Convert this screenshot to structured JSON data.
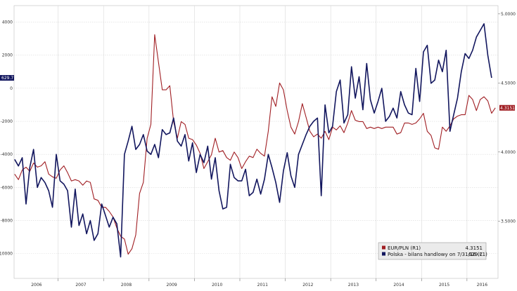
{
  "chart_data": {
    "type": "line",
    "title": "",
    "xlabel": "",
    "ylabel": "",
    "x_ticks": [
      "2006",
      "2007",
      "2008",
      "2009",
      "2010",
      "2011",
      "2012",
      "2013",
      "2014",
      "2015",
      "2016"
    ],
    "left_axis": {
      "ticks": [
        4000,
        2000,
        0,
        -2000,
        -4000,
        -6000,
        -8000,
        -10000
      ],
      "ylim": [
        -11500,
        5000
      ]
    },
    "right_axis": {
      "ticks": [
        "5.0000",
        "4.5000",
        "4.0000",
        "3.5000"
      ],
      "ylim": [
        3.085,
        5.06
      ]
    },
    "grid": true,
    "legend_position": "bottom-right",
    "series": [
      {
        "name": "EUR/PLN (R1)",
        "last_value": "4.3151",
        "color": "#a01e23",
        "axis": "right",
        "points": [
          [
            "2006-01",
            3.84
          ],
          [
            "2006-02",
            3.8
          ],
          [
            "2006-03",
            3.87
          ],
          [
            "2006-04",
            3.89
          ],
          [
            "2006-05",
            3.86
          ],
          [
            "2006-06",
            3.92
          ],
          [
            "2006-07",
            3.89
          ],
          [
            "2006-08",
            3.9
          ],
          [
            "2006-09",
            3.93
          ],
          [
            "2006-10",
            3.84
          ],
          [
            "2006-11",
            3.82
          ],
          [
            "2006-12",
            3.81
          ],
          [
            "2007-01",
            3.87
          ],
          [
            "2007-02",
            3.9
          ],
          [
            "2007-03",
            3.85
          ],
          [
            "2007-04",
            3.79
          ],
          [
            "2007-05",
            3.8
          ],
          [
            "2007-06",
            3.79
          ],
          [
            "2007-07",
            3.76
          ],
          [
            "2007-08",
            3.79
          ],
          [
            "2007-09",
            3.78
          ],
          [
            "2007-10",
            3.66
          ],
          [
            "2007-11",
            3.65
          ],
          [
            "2007-12",
            3.6
          ],
          [
            "2008-01",
            3.6
          ],
          [
            "2008-02",
            3.57
          ],
          [
            "2008-03",
            3.53
          ],
          [
            "2008-04",
            3.45
          ],
          [
            "2008-05",
            3.39
          ],
          [
            "2008-06",
            3.37
          ],
          [
            "2008-07",
            3.26
          ],
          [
            "2008-08",
            3.3
          ],
          [
            "2008-09",
            3.4
          ],
          [
            "2008-10",
            3.7
          ],
          [
            "2008-11",
            3.78
          ],
          [
            "2008-12",
            4.1
          ],
          [
            "2009-01",
            4.2
          ],
          [
            "2009-02",
            4.85
          ],
          [
            "2009-03",
            4.65
          ],
          [
            "2009-04",
            4.45
          ],
          [
            "2009-05",
            4.45
          ],
          [
            "2009-06",
            4.48
          ],
          [
            "2009-07",
            4.22
          ],
          [
            "2009-08",
            4.1
          ],
          [
            "2009-09",
            4.22
          ],
          [
            "2009-10",
            4.2
          ],
          [
            "2009-11",
            4.1
          ],
          [
            "2009-12",
            4.09
          ],
          [
            "2010-01",
            4.05
          ],
          [
            "2010-02",
            3.99
          ],
          [
            "2010-03",
            3.88
          ],
          [
            "2010-04",
            3.93
          ],
          [
            "2010-05",
            3.98
          ],
          [
            "2010-06",
            4.1
          ],
          [
            "2010-07",
            4.0
          ],
          [
            "2010-08",
            4.01
          ],
          [
            "2010-09",
            3.96
          ],
          [
            "2010-10",
            3.94
          ],
          [
            "2010-11",
            4.0
          ],
          [
            "2010-12",
            3.96
          ],
          [
            "2011-01",
            3.88
          ],
          [
            "2011-02",
            3.93
          ],
          [
            "2011-03",
            3.97
          ],
          [
            "2011-04",
            3.96
          ],
          [
            "2011-05",
            4.02
          ],
          [
            "2011-06",
            3.99
          ],
          [
            "2011-07",
            3.97
          ],
          [
            "2011-08",
            4.15
          ],
          [
            "2011-09",
            4.4
          ],
          [
            "2011-10",
            4.33
          ],
          [
            "2011-11",
            4.5
          ],
          [
            "2011-12",
            4.45
          ],
          [
            "2012-01",
            4.3
          ],
          [
            "2012-02",
            4.18
          ],
          [
            "2012-03",
            4.13
          ],
          [
            "2012-04",
            4.22
          ],
          [
            "2012-05",
            4.35
          ],
          [
            "2012-06",
            4.25
          ],
          [
            "2012-07",
            4.15
          ],
          [
            "2012-08",
            4.11
          ],
          [
            "2012-09",
            4.13
          ],
          [
            "2012-10",
            4.1
          ],
          [
            "2012-11",
            4.15
          ],
          [
            "2012-12",
            4.09
          ],
          [
            "2013-01",
            4.18
          ],
          [
            "2013-02",
            4.16
          ],
          [
            "2013-03",
            4.19
          ],
          [
            "2013-04",
            4.14
          ],
          [
            "2013-05",
            4.21
          ],
          [
            "2013-06",
            4.3
          ],
          [
            "2013-07",
            4.23
          ],
          [
            "2013-08",
            4.22
          ],
          [
            "2013-09",
            4.22
          ],
          [
            "2013-10",
            4.17
          ],
          [
            "2013-11",
            4.18
          ],
          [
            "2013-12",
            4.17
          ],
          [
            "2014-01",
            4.18
          ],
          [
            "2014-02",
            4.17
          ],
          [
            "2014-03",
            4.18
          ],
          [
            "2014-04",
            4.18
          ],
          [
            "2014-05",
            4.18
          ],
          [
            "2014-06",
            4.13
          ],
          [
            "2014-07",
            4.14
          ],
          [
            "2014-08",
            4.21
          ],
          [
            "2014-09",
            4.21
          ],
          [
            "2014-10",
            4.2
          ],
          [
            "2014-11",
            4.21
          ],
          [
            "2014-12",
            4.24
          ],
          [
            "2015-01",
            4.28
          ],
          [
            "2015-02",
            4.15
          ],
          [
            "2015-03",
            4.12
          ],
          [
            "2015-04",
            4.03
          ],
          [
            "2015-05",
            4.02
          ],
          [
            "2015-06",
            4.18
          ],
          [
            "2015-07",
            4.15
          ],
          [
            "2015-08",
            4.19
          ],
          [
            "2015-09",
            4.24
          ],
          [
            "2015-10",
            4.26
          ],
          [
            "2015-11",
            4.27
          ],
          [
            "2015-12",
            4.27
          ],
          [
            "2016-01",
            4.41
          ],
          [
            "2016-02",
            4.38
          ],
          [
            "2016-03",
            4.3
          ],
          [
            "2016-04",
            4.38
          ],
          [
            "2016-05",
            4.4
          ],
          [
            "2016-06",
            4.37
          ],
          [
            "2016-07",
            4.28
          ],
          [
            "2016-08",
            4.32
          ]
        ]
      },
      {
        "name": "Polska - bilans handlowy on 7/31/16 (L1)",
        "last_value": "629.7",
        "color": "#12165e",
        "axis": "left",
        "points": [
          [
            "2006-01",
            -4300
          ],
          [
            "2006-02",
            -4700
          ],
          [
            "2006-03",
            -4200
          ],
          [
            "2006-04",
            -7000
          ],
          [
            "2006-05",
            -4800
          ],
          [
            "2006-06",
            -3700
          ],
          [
            "2006-07",
            -6000
          ],
          [
            "2006-08",
            -5400
          ],
          [
            "2006-09",
            -5700
          ],
          [
            "2006-10",
            -6200
          ],
          [
            "2006-11",
            -7200
          ],
          [
            "2006-12",
            -4000
          ],
          [
            "2007-01",
            -5600
          ],
          [
            "2007-02",
            -5800
          ],
          [
            "2007-03",
            -6200
          ],
          [
            "2007-04",
            -8400
          ],
          [
            "2007-05",
            -6100
          ],
          [
            "2007-06",
            -8300
          ],
          [
            "2007-07",
            -7600
          ],
          [
            "2007-08",
            -8800
          ],
          [
            "2007-09",
            -8000
          ],
          [
            "2007-10",
            -9200
          ],
          [
            "2007-11",
            -8800
          ],
          [
            "2007-12",
            -7000
          ],
          [
            "2008-01",
            -7700
          ],
          [
            "2008-02",
            -8400
          ],
          [
            "2008-03",
            -7800
          ],
          [
            "2008-04",
            -8200
          ],
          [
            "2008-05",
            -10200
          ],
          [
            "2008-06",
            -4000
          ],
          [
            "2008-07",
            -3200
          ],
          [
            "2008-08",
            -2300
          ],
          [
            "2008-09",
            -3700
          ],
          [
            "2008-10",
            -3400
          ],
          [
            "2008-11",
            -2800
          ],
          [
            "2008-12",
            -3800
          ],
          [
            "2009-01",
            -4000
          ],
          [
            "2009-02",
            -3400
          ],
          [
            "2009-03",
            -4200
          ],
          [
            "2009-04",
            -2500
          ],
          [
            "2009-05",
            -2800
          ],
          [
            "2009-06",
            -2700
          ],
          [
            "2009-07",
            -1800
          ],
          [
            "2009-08",
            -3200
          ],
          [
            "2009-09",
            -3500
          ],
          [
            "2009-10",
            -2800
          ],
          [
            "2009-11",
            -4400
          ],
          [
            "2009-12",
            -3300
          ],
          [
            "2010-01",
            -5100
          ],
          [
            "2010-02",
            -4000
          ],
          [
            "2010-03",
            -4500
          ],
          [
            "2010-04",
            -3500
          ],
          [
            "2010-05",
            -5500
          ],
          [
            "2010-06",
            -4200
          ],
          [
            "2010-07",
            -6200
          ],
          [
            "2010-08",
            -7300
          ],
          [
            "2010-09",
            -7200
          ],
          [
            "2010-10",
            -4600
          ],
          [
            "2010-11",
            -5400
          ],
          [
            "2010-12",
            -5600
          ],
          [
            "2011-01",
            -5600
          ],
          [
            "2011-02",
            -4900
          ],
          [
            "2011-03",
            -6500
          ],
          [
            "2011-04",
            -6300
          ],
          [
            "2011-05",
            -5500
          ],
          [
            "2011-06",
            -6400
          ],
          [
            "2011-07",
            -5500
          ],
          [
            "2011-08",
            -4000
          ],
          [
            "2011-09",
            -4800
          ],
          [
            "2011-10",
            -5700
          ],
          [
            "2011-11",
            -6900
          ],
          [
            "2011-12",
            -5000
          ],
          [
            "2012-01",
            -3900
          ],
          [
            "2012-02",
            -5300
          ],
          [
            "2012-03",
            -6000
          ],
          [
            "2012-04",
            -4000
          ],
          [
            "2012-05",
            -3400
          ],
          [
            "2012-06",
            -2800
          ],
          [
            "2012-07",
            -2300
          ],
          [
            "2012-08",
            -2000
          ],
          [
            "2012-09",
            -1800
          ],
          [
            "2012-10",
            -6500
          ],
          [
            "2012-11",
            -1000
          ],
          [
            "2012-12",
            -2700
          ],
          [
            "2013-01",
            -2300
          ],
          [
            "2013-02",
            -200
          ],
          [
            "2013-03",
            500
          ],
          [
            "2013-04",
            -2100
          ],
          [
            "2013-05",
            -1600
          ],
          [
            "2013-06",
            1300
          ],
          [
            "2013-07",
            -600
          ],
          [
            "2013-08",
            700
          ],
          [
            "2013-09",
            -1300
          ],
          [
            "2013-10",
            1500
          ],
          [
            "2013-11",
            -700
          ],
          [
            "2013-12",
            -1500
          ],
          [
            "2014-01",
            -800
          ],
          [
            "2014-02",
            0
          ],
          [
            "2014-03",
            -2000
          ],
          [
            "2014-04",
            -1700
          ],
          [
            "2014-05",
            -1200
          ],
          [
            "2014-06",
            -1800
          ],
          [
            "2014-07",
            -200
          ],
          [
            "2014-08",
            -1000
          ],
          [
            "2014-09",
            -1500
          ],
          [
            "2014-10",
            -1600
          ],
          [
            "2014-11",
            1200
          ],
          [
            "2014-12",
            -800
          ],
          [
            "2015-01",
            2200
          ],
          [
            "2015-02",
            2600
          ],
          [
            "2015-03",
            300
          ],
          [
            "2015-04",
            500
          ],
          [
            "2015-05",
            1700
          ],
          [
            "2015-06",
            1000
          ],
          [
            "2015-07",
            2300
          ],
          [
            "2015-08",
            -2600
          ],
          [
            "2015-09",
            -1600
          ],
          [
            "2015-10",
            -600
          ],
          [
            "2015-11",
            1000
          ],
          [
            "2015-12",
            2100
          ],
          [
            "2016-01",
            1800
          ],
          [
            "2016-02",
            2300
          ],
          [
            "2016-03",
            3100
          ],
          [
            "2016-04",
            3500
          ],
          [
            "2016-05",
            3900
          ],
          [
            "2016-06",
            2000
          ],
          [
            "2016-07",
            630
          ]
        ]
      }
    ]
  },
  "axis_tags": {
    "left": "629.7",
    "right": "4.3151"
  },
  "colors": {
    "background": "#ffffff",
    "grid": "#d9d9d9",
    "tag_left": "#12165e",
    "tag_right": "#a01e23"
  }
}
